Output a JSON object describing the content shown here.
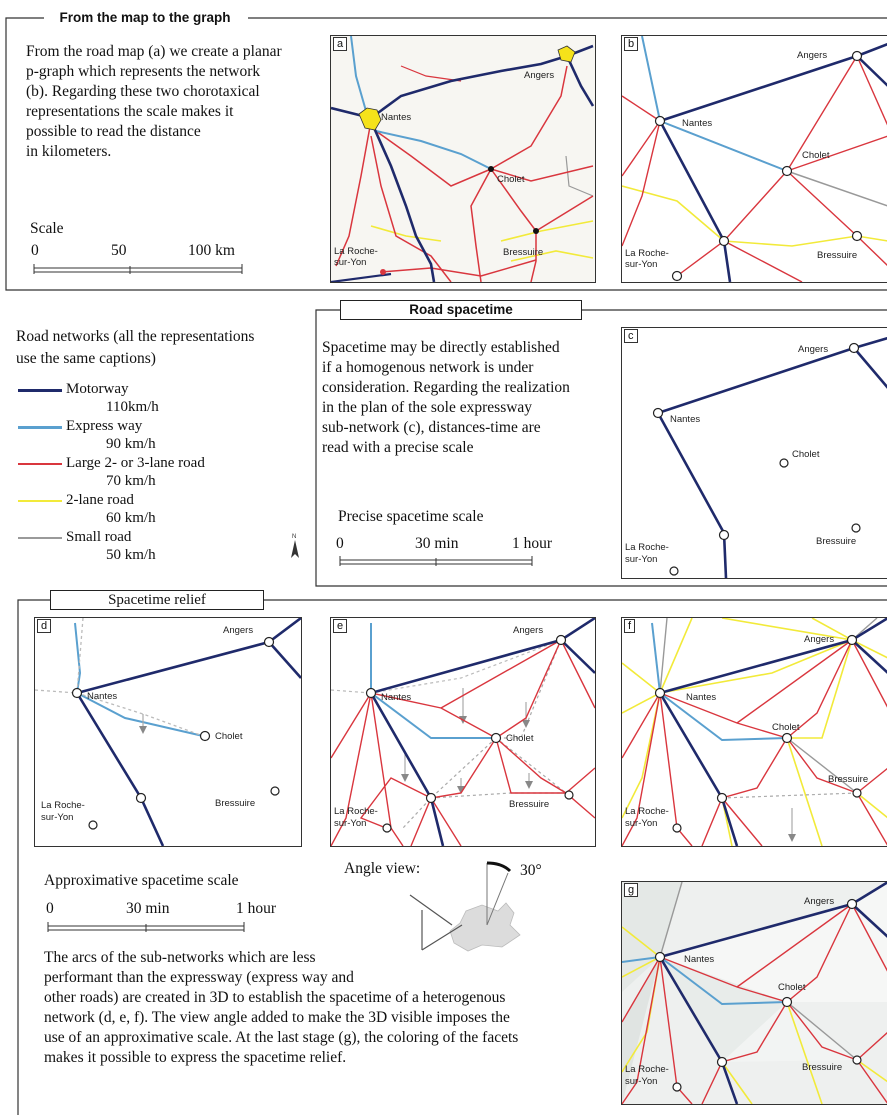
{
  "sections": {
    "map_to_graph": {
      "title": "From the map to the graph",
      "text": [
        "From the road map (a) we create a planar",
        "p-graph which represents the network",
        "(b). Regarding these two chorotaxical",
        "representations the scale makes it",
        "possible to read the distance",
        "in kilometers."
      ],
      "scale_title": "Scale",
      "scale_ticks": [
        "0",
        "50",
        "100 km"
      ]
    },
    "road_spacetime": {
      "title": "Road spacetime",
      "text": [
        "Spacetime may be directly established",
        "if a homogenous network is under",
        "consideration. Regarding the realization",
        "in the plan of the sole expressway",
        "sub-network (c), distances-time are",
        "read with a precise scale"
      ],
      "scale_title": "Precise spacetime scale",
      "scale_ticks": [
        "0",
        "30 min",
        "1 hour"
      ]
    },
    "spacetime_relief": {
      "title": "Spacetime relief",
      "scale_title": "Approximative spacetime scale",
      "scale_ticks": [
        "0",
        "30 min",
        "1 hour"
      ],
      "angle_label": "Angle view:",
      "angle_value": "30°",
      "text": [
        "The arcs of the sub-networks which are less",
        "performant than the expressway (express way and",
        "other roads) are created in 3D to establish the spacetime of a heterogenous",
        "network (d, e, f). The view angle added to make the 3D visible imposes the",
        "use of an approximative scale. At the last stage (g), the coloring of the facets",
        "makes it possible to express the spacetime relief."
      ]
    }
  },
  "legend": {
    "title_lines": [
      "Road networks (all the representations",
      "use the same captions)"
    ],
    "items": [
      {
        "label": "Motorway",
        "speed": "110km/h",
        "color": "#1f2a6b"
      },
      {
        "label": "Express way",
        "speed": "90 km/h",
        "color": "#5aa0cf"
      },
      {
        "label": "Large 2- or 3-lane road",
        "speed": "70 km/h",
        "color": "#d9363e"
      },
      {
        "label": "2-lane road",
        "speed": "60 km/h",
        "color": "#f2ea3a"
      },
      {
        "label": "Small road",
        "speed": "50 km/h",
        "color": "#9a9a9a"
      }
    ]
  },
  "panels": {
    "a": {
      "letter": "a",
      "cities": [
        "Angers",
        "Nantes",
        "Cholet",
        "La Roche-",
        "sur-Yon",
        "Bressuire"
      ]
    },
    "b": {
      "letter": "b",
      "cities": [
        "Angers",
        "Nantes",
        "Cholet",
        "La Roche-",
        "sur-Yon",
        "Bressuire"
      ]
    },
    "c": {
      "letter": "c",
      "cities": [
        "Angers",
        "Nantes",
        "Cholet",
        "La Roche-",
        "sur-Yon",
        "Bressuire"
      ]
    },
    "d": {
      "letter": "d",
      "cities": [
        "Angers",
        "Nantes",
        "Cholet",
        "La Roche-",
        "sur-Yon",
        "Bressuire"
      ]
    },
    "e": {
      "letter": "e",
      "cities": [
        "Angers",
        "Nantes",
        "Cholet",
        "La Roche-",
        "sur-Yon",
        "Bressuire"
      ]
    },
    "f": {
      "letter": "f",
      "cities": [
        "Angers",
        "Nantes",
        "Cholet",
        "La Roche-",
        "sur-Yon",
        "Bressuire"
      ]
    },
    "g": {
      "letter": "g",
      "cities": [
        "Angers",
        "Nantes",
        "Cholet",
        "La Roche-",
        "sur-Yon",
        "Bressuire"
      ]
    }
  },
  "colors": {
    "motorway": "#1f2a6b",
    "expressway": "#5aa0cf",
    "large_road": "#d9363e",
    "two_lane": "#f2ea3a",
    "small_road": "#9a9a9a",
    "city_fill": "#f5e21a"
  },
  "icons": {
    "north_arrow": "north-arrow-icon"
  }
}
